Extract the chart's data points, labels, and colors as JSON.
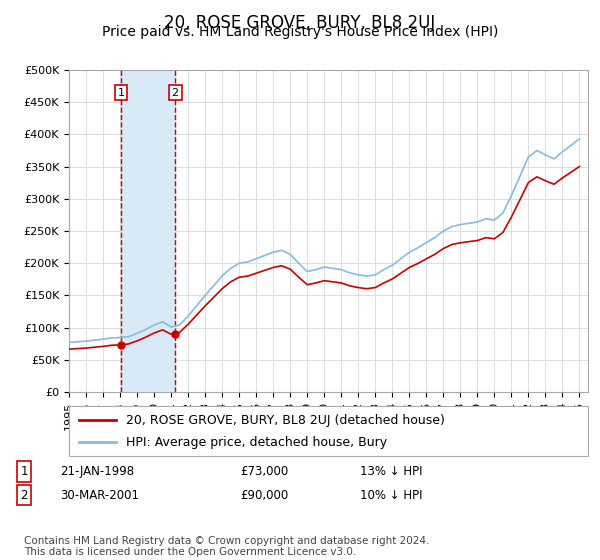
{
  "title": "20, ROSE GROVE, BURY, BL8 2UJ",
  "subtitle": "Price paid vs. HM Land Registry's House Price Index (HPI)",
  "ylim": [
    0,
    500000
  ],
  "yticks": [
    0,
    50000,
    100000,
    150000,
    200000,
    250000,
    300000,
    350000,
    400000,
    450000,
    500000
  ],
  "ytick_labels": [
    "£0",
    "£50K",
    "£100K",
    "£150K",
    "£200K",
    "£250K",
    "£300K",
    "£350K",
    "£400K",
    "£450K",
    "£500K"
  ],
  "xlim": [
    1995.0,
    2025.5
  ],
  "sale_dates": [
    1998.055,
    2001.24
  ],
  "sale_prices": [
    73000,
    90000
  ],
  "sale_labels": [
    "1",
    "2"
  ],
  "sale_info": [
    {
      "num": "1",
      "date": "21-JAN-1998",
      "price": "£73,000",
      "hpi": "13% ↓ HPI"
    },
    {
      "num": "2",
      "date": "30-MAR-2001",
      "price": "£90,000",
      "hpi": "10% ↓ HPI"
    }
  ],
  "legend_line1": "20, ROSE GROVE, BURY, BL8 2UJ (detached house)",
  "legend_line2": "HPI: Average price, detached house, Bury",
  "footer": "Contains HM Land Registry data © Crown copyright and database right 2024.\nThis data is licensed under the Open Government Licence v3.0.",
  "sale_color": "#cc0000",
  "hpi_color": "#88bbdd",
  "vline_color": "#cc0000",
  "shade_color": "#d8eaf7",
  "background_color": "#ffffff",
  "grid_color": "#dddddd",
  "title_fontsize": 12,
  "subtitle_fontsize": 10,
  "tick_fontsize": 8,
  "legend_fontsize": 9,
  "footer_fontsize": 7.5,
  "hpi_values": [
    77000,
    78000,
    79000,
    80500,
    82000,
    84000,
    84500,
    86000,
    91000,
    97000,
    104000,
    109000,
    101000,
    104000,
    118000,
    134000,
    150000,
    165000,
    180000,
    192000,
    200000,
    202000,
    207000,
    212000,
    217000,
    220000,
    214000,
    200000,
    187000,
    190000,
    194000,
    192000,
    190000,
    185000,
    182000,
    180000,
    182000,
    190000,
    197000,
    207000,
    217000,
    224000,
    232000,
    240000,
    250000,
    257000,
    260000,
    262000,
    264000,
    269000,
    267000,
    278000,
    305000,
    335000,
    365000,
    375000,
    368000,
    362000,
    373000,
    383000,
    393000
  ],
  "years_hpi": [
    1995.0,
    1995.5,
    1996.0,
    1996.5,
    1997.0,
    1997.5,
    1998.0,
    1998.5,
    1999.0,
    1999.5,
    2000.0,
    2000.5,
    2001.0,
    2001.5,
    2002.0,
    2002.5,
    2003.0,
    2003.5,
    2004.0,
    2004.5,
    2005.0,
    2005.5,
    2006.0,
    2006.5,
    2007.0,
    2007.5,
    2008.0,
    2008.5,
    2009.0,
    2009.5,
    2010.0,
    2010.5,
    2011.0,
    2011.5,
    2012.0,
    2012.5,
    2013.0,
    2013.5,
    2014.0,
    2014.5,
    2015.0,
    2015.5,
    2016.0,
    2016.5,
    2017.0,
    2017.5,
    2018.0,
    2018.5,
    2019.0,
    2019.5,
    2020.0,
    2020.5,
    2021.0,
    2021.5,
    2022.0,
    2022.5,
    2023.0,
    2023.5,
    2024.0,
    2024.5,
    2025.0
  ]
}
